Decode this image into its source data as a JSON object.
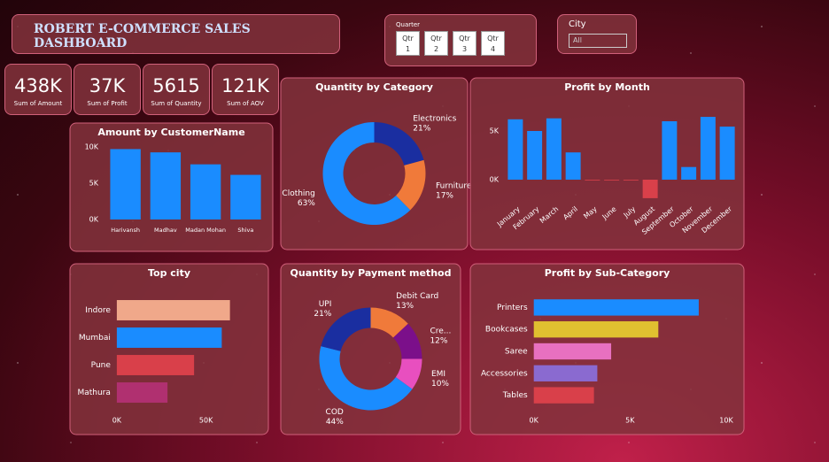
{
  "header": {
    "title": "ROBERT E-COMMERCE SALES DASHBOARD"
  },
  "quarter_slicer": {
    "label": "Quarter",
    "options": [
      "Qtr 1",
      "Qtr 2",
      "Qtr 3",
      "Qtr 4"
    ]
  },
  "city_slicer": {
    "label": "City",
    "selected": "All"
  },
  "kpis": [
    {
      "value": "438K",
      "label": "Sum of Amount"
    },
    {
      "value": "37K",
      "label": "Sum of Profit"
    },
    {
      "value": "5615",
      "label": "Sum of Quantity"
    },
    {
      "value": "121K",
      "label": "Sum of AOV"
    }
  ],
  "chart_data": [
    {
      "type": "bar",
      "title": "Amount by CustomerName",
      "categories": [
        "Harivansh",
        "Madhav",
        "Madan Mohan",
        "Shiva"
      ],
      "values": [
        9700,
        9250,
        7600,
        6150
      ],
      "color": "#1a8cff",
      "ylim": [
        0,
        10000
      ],
      "yticks": [
        {
          "value": 0,
          "label": "0K"
        },
        {
          "value": 5000,
          "label": "5K"
        },
        {
          "value": 10000,
          "label": "10K"
        }
      ]
    },
    {
      "type": "donut",
      "title": "Quantity by Category",
      "categories": [
        "Electronics",
        "Furniture",
        "Clothing"
      ],
      "values": [
        21,
        17,
        63
      ],
      "value_labels": [
        "21%",
        "17%",
        "63%"
      ],
      "colors": [
        "#1a2ea0",
        "#f07a3a",
        "#1a8cff"
      ]
    },
    {
      "type": "bar",
      "title": "Profit by Month",
      "categories": [
        "January",
        "February",
        "March",
        "April",
        "May",
        "June",
        "July",
        "August",
        "September",
        "October",
        "November",
        "December"
      ],
      "values": [
        6200,
        5000,
        6300,
        2800,
        -30,
        -50,
        -50,
        -1900,
        6000,
        1300,
        6450,
        5450
      ],
      "color": "#1a8cff",
      "negative_color": "#d9404a",
      "ylim": [
        -2000,
        7000
      ],
      "yticks": [
        {
          "value": 0,
          "label": "0K"
        },
        {
          "value": 5000,
          "label": "5K"
        }
      ]
    },
    {
      "type": "barh",
      "title": "Top city",
      "categories": [
        "Indore",
        "Mumbai",
        "Pune",
        "Mathura"
      ],
      "values": [
        63400,
        58800,
        43300,
        28400
      ],
      "colors": [
        "#f0a88a",
        "#1a8cff",
        "#d9404a",
        "#b03070"
      ],
      "xlim": [
        0,
        75000
      ],
      "xticks": [
        {
          "value": 0,
          "label": "0K"
        },
        {
          "value": 50000,
          "label": "50K"
        }
      ]
    },
    {
      "type": "donut",
      "title": "Quantity by Payment method",
      "categories": [
        "Debit Card",
        "Cre...",
        "EMI",
        "COD",
        "UPI"
      ],
      "values": [
        13,
        12,
        10,
        44,
        21
      ],
      "value_labels": [
        "13%",
        "12%",
        "10%",
        "44%",
        "21%"
      ],
      "colors": [
        "#f07a3a",
        "#7b0f8a",
        "#e84fbf",
        "#1a8cff",
        "#1a2ea0"
      ]
    },
    {
      "type": "barh",
      "title": "Profit by Sub-Category",
      "categories": [
        "Printers",
        "Bookcases",
        "Saree",
        "Accessories",
        "Tables"
      ],
      "values": [
        8570,
        6470,
        4020,
        3300,
        3125
      ],
      "colors": [
        "#1a8cff",
        "#e0c030",
        "#e870c0",
        "#8a6ad0",
        "#d9404a"
      ],
      "xlim": [
        0,
        10000
      ],
      "xticks": [
        {
          "value": 0,
          "label": "0K"
        },
        {
          "value": 5000,
          "label": "5K"
        },
        {
          "value": 10000,
          "label": "10K"
        }
      ]
    }
  ]
}
